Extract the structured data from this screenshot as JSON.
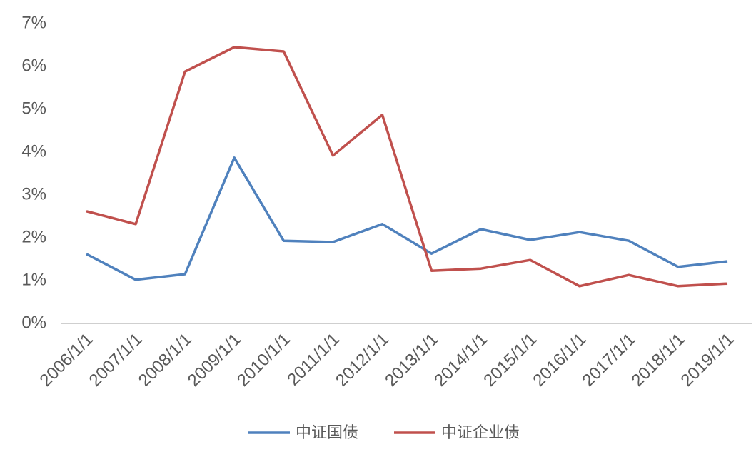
{
  "chart_data": {
    "type": "line",
    "categories": [
      "2006/1/1",
      "2007/1/1",
      "2008/1/1",
      "2009/1/1",
      "2010/1/1",
      "2011/1/1",
      "2012/1/1",
      "2013/1/1",
      "2014/1/1",
      "2015/1/1",
      "2016/1/1",
      "2017/1/1",
      "2018/1/1",
      "2019/1/1"
    ],
    "series": [
      {
        "name": "中证国债",
        "color": "#4f81bd",
        "values": [
          1.62,
          1.02,
          1.15,
          3.87,
          1.93,
          1.9,
          2.32,
          1.63,
          2.2,
          1.95,
          2.13,
          1.93,
          1.32,
          1.45
        ]
      },
      {
        "name": "中证企业债",
        "color": "#c0504d",
        "values": [
          2.62,
          2.32,
          5.88,
          6.45,
          6.35,
          3.92,
          4.87,
          1.23,
          1.28,
          1.48,
          0.87,
          1.13,
          0.87,
          0.93
        ]
      }
    ],
    "ylim": [
      0,
      7
    ],
    "yticks": [
      {
        "value": 0,
        "label": "0%"
      },
      {
        "value": 1,
        "label": "1%"
      },
      {
        "value": 2,
        "label": "2%"
      },
      {
        "value": 3,
        "label": "3%"
      },
      {
        "value": 4,
        "label": "4%"
      },
      {
        "value": 5,
        "label": "5%"
      },
      {
        "value": 6,
        "label": "6%"
      },
      {
        "value": 7,
        "label": "7%"
      }
    ],
    "grid": false,
    "legend": "bottom"
  }
}
